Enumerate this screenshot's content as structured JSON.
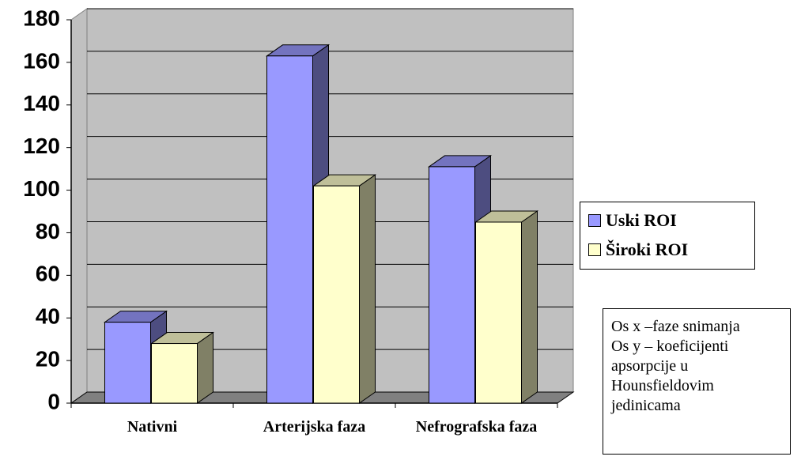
{
  "chart_data": {
    "type": "bar3d",
    "categories": [
      "Nativni",
      "Arterijska faza",
      "Nefrografska faza"
    ],
    "series": [
      {
        "name": "Uski ROI",
        "color": "#9999ff",
        "values": [
          38,
          163,
          111
        ]
      },
      {
        "name": "Široki ROI",
        "color": "#ffffcc",
        "values": [
          28,
          102,
          85
        ]
      }
    ],
    "ylim": [
      0,
      180
    ],
    "yticks": [
      0,
      20,
      40,
      60,
      80,
      100,
      120,
      140,
      160,
      180
    ],
    "grid": true,
    "legend": "right",
    "note": [
      "Os x –faze snimanja",
      "Os y – koeficijenti apsorpcije u Hounsfieldovim jedinicama"
    ]
  }
}
